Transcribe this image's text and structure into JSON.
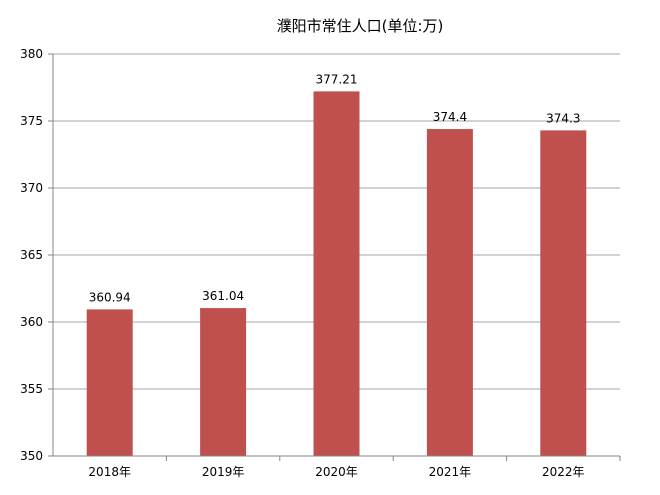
{
  "chart_data": {
    "type": "bar",
    "title": "濮阳市常住人口(单位:万)",
    "xlabel": "",
    "ylabel": "",
    "categories": [
      "2018年",
      "2019年",
      "2020年",
      "2021年",
      "2022年"
    ],
    "values": [
      360.94,
      361.04,
      377.21,
      374.4,
      374.3
    ],
    "data_labels": [
      "360.94",
      "361.04",
      "377.21",
      "374.4",
      "374.3"
    ],
    "ylim": [
      350,
      380
    ],
    "yticks": [
      350,
      355,
      360,
      365,
      370,
      375,
      380
    ],
    "grid": true,
    "legend": "none",
    "colors": {
      "bar": "#c0504d",
      "grid": "#a6a6a6",
      "axis": "#868686"
    }
  }
}
